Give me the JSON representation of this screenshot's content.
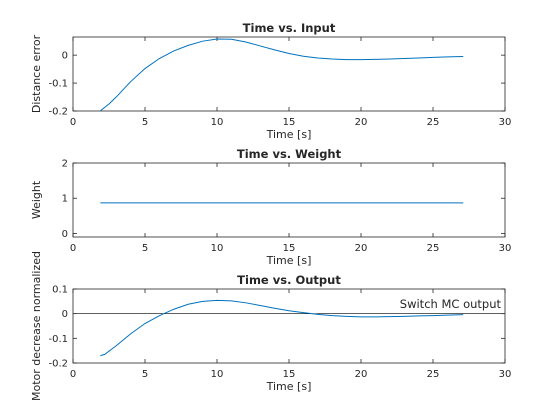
{
  "chart_data": [
    {
      "type": "line",
      "title": "Time vs. Input",
      "xlabel": "Time [s]",
      "ylabel": "Distance error",
      "xlim": [
        0,
        30
      ],
      "ylim": [
        -0.2,
        0.065
      ],
      "xticks": [
        0,
        5,
        10,
        15,
        20,
        25,
        30
      ],
      "yticks": [
        -0.2,
        -0.1,
        0
      ],
      "xtick_labels": [
        "0",
        "5",
        "10",
        "15",
        "20",
        "25",
        "30"
      ],
      "ytick_labels": [
        "-0.2",
        "-0.1",
        "0"
      ],
      "grid": false,
      "color": "#0072BD",
      "series": [
        {
          "x": [
            1.9,
            2.0,
            2.5,
            3.0,
            4.0,
            5.0,
            6.0,
            7.0,
            8.0,
            9.0,
            10.0,
            11.0,
            12.0,
            13.0,
            14.0,
            15.0,
            16.0,
            17.0,
            18.0,
            19.0,
            20.0,
            21.0,
            22.0,
            23.0,
            24.0,
            25.0,
            26.0,
            27.1
          ],
          "y": [
            -0.2,
            -0.195,
            -0.175,
            -0.15,
            -0.095,
            -0.048,
            -0.012,
            0.015,
            0.035,
            0.05,
            0.058,
            0.057,
            0.047,
            0.033,
            0.019,
            0.006,
            -0.004,
            -0.01,
            -0.014,
            -0.016,
            -0.016,
            -0.015,
            -0.014,
            -0.012,
            -0.01,
            -0.008,
            -0.006,
            -0.005
          ]
        }
      ]
    },
    {
      "type": "line",
      "title": "Time vs. Weight",
      "xlabel": "Time [s]",
      "ylabel": "Weight",
      "xlim": [
        0,
        30
      ],
      "ylim": [
        -0.1,
        2
      ],
      "xticks": [
        0,
        5,
        10,
        15,
        20,
        25,
        30
      ],
      "yticks": [
        0,
        1,
        2
      ],
      "xtick_labels": [
        "0",
        "5",
        "10",
        "15",
        "20",
        "25",
        "30"
      ],
      "ytick_labels": [
        "0",
        "1",
        "2"
      ],
      "grid": false,
      "color": "#0072BD",
      "series": [
        {
          "x": [
            1.9,
            27.1
          ],
          "y": [
            0.87,
            0.87
          ]
        }
      ]
    },
    {
      "type": "line",
      "title": "Time vs. Output",
      "xlabel": "Time [s]",
      "ylabel": "Motor decrease normalized",
      "xlim": [
        0,
        30
      ],
      "ylim": [
        -0.2,
        0.1
      ],
      "xticks": [
        0,
        5,
        10,
        15,
        20,
        25,
        30
      ],
      "yticks": [
        -0.2,
        -0.1,
        0,
        0.1
      ],
      "xtick_labels": [
        "0",
        "5",
        "10",
        "15",
        "20",
        "25",
        "30"
      ],
      "ytick_labels": [
        "-0.2",
        "-0.1",
        "0",
        "0.1"
      ],
      "grid": false,
      "color": "#0072BD",
      "annotation": "Switch MC output",
      "reference_line_y": 0,
      "series": [
        {
          "x": [
            1.9,
            2.2,
            3.0,
            4.0,
            5.0,
            6.0,
            7.0,
            8.0,
            9.0,
            10.0,
            11.0,
            12.0,
            13.0,
            14.0,
            15.0,
            16.0,
            17.0,
            18.0,
            19.0,
            20.0,
            21.0,
            22.0,
            23.0,
            24.0,
            25.0,
            26.0,
            27.1
          ],
          "y": [
            -0.17,
            -0.165,
            -0.13,
            -0.082,
            -0.04,
            -0.008,
            0.018,
            0.038,
            0.05,
            0.054,
            0.052,
            0.044,
            0.033,
            0.022,
            0.012,
            0.004,
            -0.003,
            -0.008,
            -0.011,
            -0.013,
            -0.013,
            -0.012,
            -0.011,
            -0.009,
            -0.008,
            -0.006,
            -0.004
          ]
        }
      ]
    }
  ]
}
